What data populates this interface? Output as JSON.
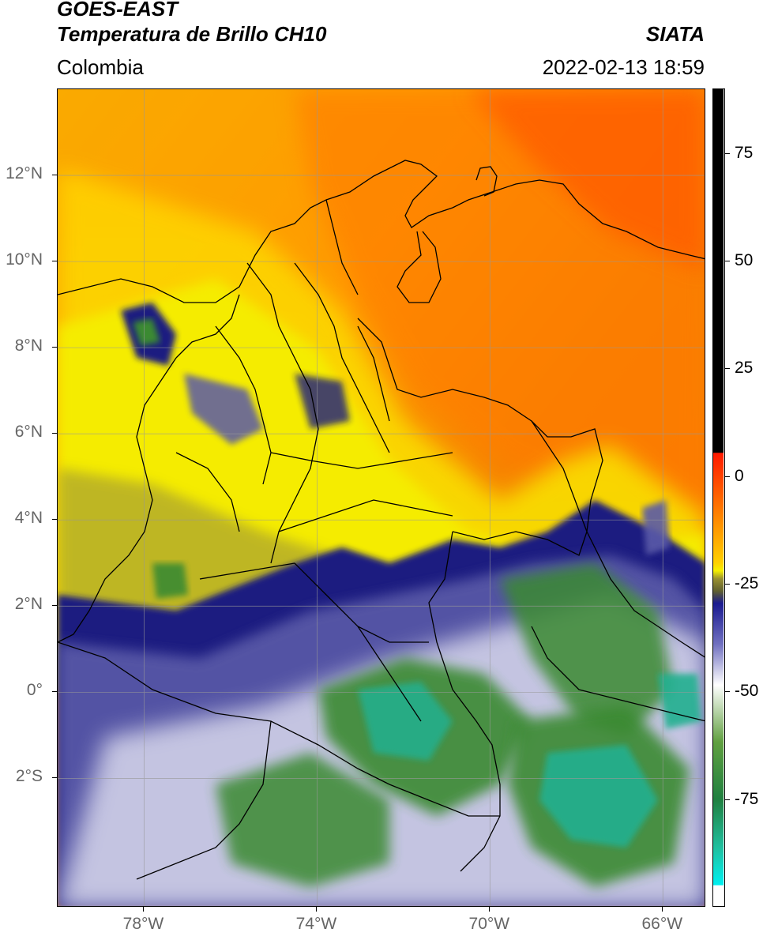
{
  "header": {
    "title_line1": "GOES-EAST",
    "title_line2": "Temperatura de Brillo CH10",
    "region": "Colombia",
    "organization": "SIATA",
    "datetime": "2022-02-13 18:59"
  },
  "map": {
    "lat_labels": [
      {
        "label": "12°N",
        "lat": 12
      },
      {
        "label": "10°N",
        "lat": 10
      },
      {
        "label": "8°N",
        "lat": 8
      },
      {
        "label": "6°N",
        "lat": 6
      },
      {
        "label": "4°N",
        "lat": 4
      },
      {
        "label": "2°N",
        "lat": 2
      },
      {
        "label": "0°",
        "lat": 0
      },
      {
        "label": "2°S",
        "lat": -2
      }
    ],
    "lon_labels": [
      {
        "label": "78°W",
        "lon": -78
      },
      {
        "label": "74°W",
        "lon": -74
      },
      {
        "label": "70°W",
        "lon": -70
      },
      {
        "label": "66°W",
        "lon": -66
      }
    ],
    "lon_range": [
      -80,
      -65
    ],
    "lat_range": [
      -5,
      14
    ]
  },
  "colorbar": {
    "labels": [
      {
        "label": "75",
        "value": 75
      },
      {
        "label": "50",
        "value": 50
      },
      {
        "label": "25",
        "value": 25
      },
      {
        "label": "0",
        "value": 0
      },
      {
        "label": "-25",
        "value": -25
      },
      {
        "label": "-50",
        "value": -50
      },
      {
        "label": "-75",
        "value": -75
      }
    ],
    "range": [
      -100,
      90
    ]
  }
}
